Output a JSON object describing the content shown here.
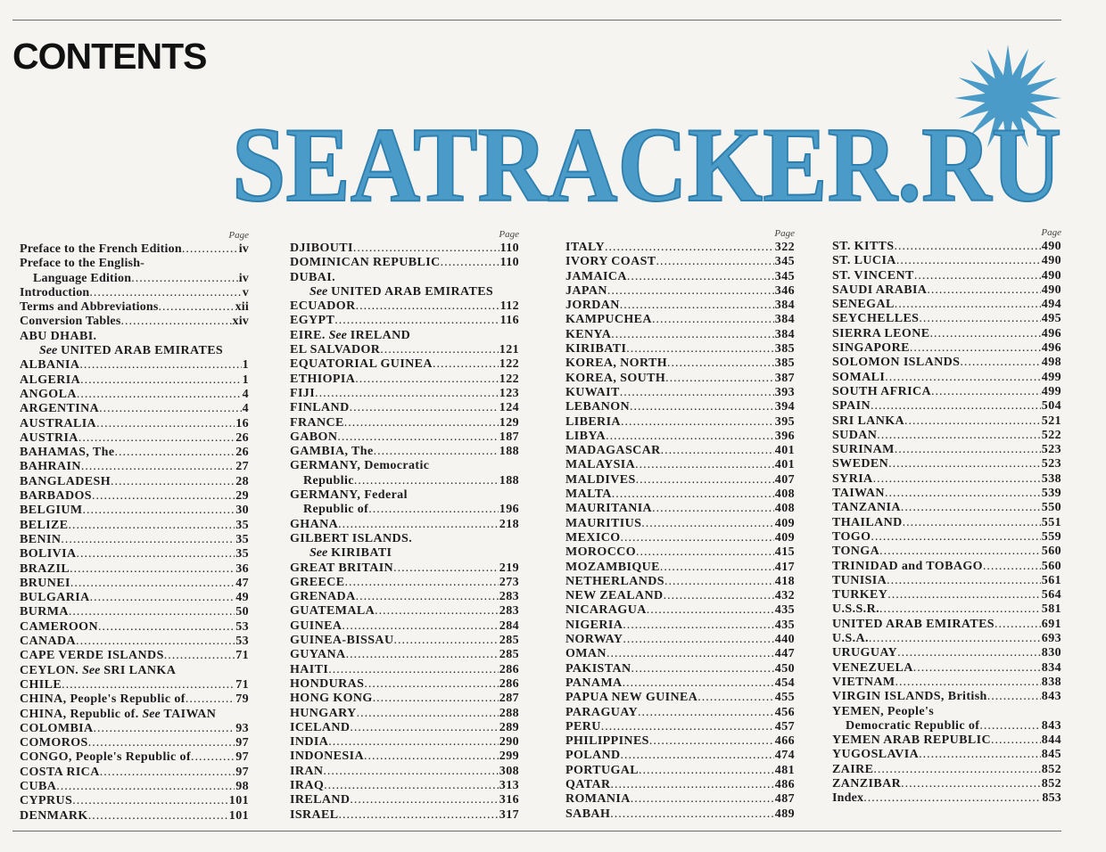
{
  "header": {
    "title": "CONTENTS"
  },
  "page_label": "Page",
  "columns": [
    [
      {
        "a": "Preface to the French Edition",
        "p": "iv",
        "mixed": true
      },
      {
        "a": "Preface to the English-",
        "mixed": true
      },
      {
        "a": "Language Edition",
        "p": "iv",
        "i": 1,
        "mixed": true
      },
      {
        "a": "Introduction",
        "p": "v",
        "mixed": true
      },
      {
        "a": "Terms and Abbreviations",
        "p": "xii",
        "mixed": true
      },
      {
        "a": "Conversion Tables",
        "p": "xiv",
        "mixed": true
      },
      {
        "a": "ABU DHABI."
      },
      {
        "s": "See",
        "b": " UNITED ARAB EMIRATES",
        "i": 1
      },
      {
        "a": "ALBANIA",
        "p": "1"
      },
      {
        "a": "ALGERIA",
        "p": "1"
      },
      {
        "a": "ANGOLA",
        "p": "4"
      },
      {
        "a": "ARGENTINA",
        "p": "4"
      },
      {
        "a": "AUSTRALIA",
        "p": "16"
      },
      {
        "a": "AUSTRIA",
        "p": "26"
      },
      {
        "a": "BAHAMAS, The",
        "p": "26"
      },
      {
        "a": "BAHRAIN",
        "p": "27"
      },
      {
        "a": "BANGLADESH",
        "p": "28"
      },
      {
        "a": "BARBADOS",
        "p": "29"
      },
      {
        "a": "BELGIUM",
        "p": "30"
      },
      {
        "a": "BELIZE",
        "p": "35"
      },
      {
        "a": "BENIN",
        "p": "35"
      },
      {
        "a": "BOLIVIA",
        "p": "35"
      },
      {
        "a": "BRAZIL",
        "p": "36"
      },
      {
        "a": "BRUNEI",
        "p": "47"
      },
      {
        "a": "BULGARIA",
        "p": "49"
      },
      {
        "a": "BURMA",
        "p": "50"
      },
      {
        "a": "CAMEROON",
        "p": "53"
      },
      {
        "a": "CANADA",
        "p": "53"
      },
      {
        "a": "CAPE VERDE ISLANDS",
        "p": "71"
      },
      {
        "a": "CEYLON. ",
        "s": "See",
        "b": " SRI LANKA"
      },
      {
        "a": "CHILE",
        "p": "71"
      },
      {
        "a": "CHINA, People's Republic of",
        "p": "79"
      },
      {
        "a": "CHINA, Republic of. ",
        "s": "See",
        "b": " TAIWAN"
      },
      {
        "a": "COLOMBIA",
        "p": "93"
      },
      {
        "a": "COMOROS",
        "p": "97"
      },
      {
        "a": "CONGO, People's Republic of",
        "p": "97"
      },
      {
        "a": "COSTA RICA",
        "p": "97"
      },
      {
        "a": "CUBA",
        "p": "98"
      },
      {
        "a": "CYPRUS",
        "p": "101"
      },
      {
        "a": "DENMARK",
        "p": "101"
      }
    ],
    [
      {
        "a": "DJIBOUTI",
        "p": "110"
      },
      {
        "a": "DOMINICAN REPUBLIC",
        "p": "110"
      },
      {
        "a": "DUBAI."
      },
      {
        "s": "See",
        "b": " UNITED ARAB EMIRATES",
        "i": 1
      },
      {
        "a": "ECUADOR",
        "p": "112"
      },
      {
        "a": "EGYPT",
        "p": "116"
      },
      {
        "a": "EIRE. ",
        "s": "See",
        "b": " IRELAND"
      },
      {
        "a": "EL SALVADOR",
        "p": "121"
      },
      {
        "a": "EQUATORIAL GUINEA",
        "p": "122"
      },
      {
        "a": "ETHIOPIA",
        "p": "122"
      },
      {
        "a": "FIJI",
        "p": "123"
      },
      {
        "a": "FINLAND",
        "p": "124"
      },
      {
        "a": "FRANCE",
        "p": "129"
      },
      {
        "a": "GABON",
        "p": "187"
      },
      {
        "a": "GAMBIA, The",
        "p": "188"
      },
      {
        "a": "GERMANY, Democratic"
      },
      {
        "a": "Republic",
        "p": "188",
        "i": 1
      },
      {
        "a": "GERMANY, Federal"
      },
      {
        "a": "Republic of",
        "p": "196",
        "i": 1
      },
      {
        "a": "GHANA",
        "p": "218"
      },
      {
        "a": "GILBERT ISLANDS."
      },
      {
        "s": "See",
        "b": " KIRIBATI",
        "i": 1
      },
      {
        "a": "GREAT BRITAIN",
        "p": "219"
      },
      {
        "a": "GREECE",
        "p": "273"
      },
      {
        "a": "GRENADA",
        "p": "283"
      },
      {
        "a": "GUATEMALA",
        "p": "283"
      },
      {
        "a": "GUINEA",
        "p": "284"
      },
      {
        "a": "GUINEA-BISSAU",
        "p": "285"
      },
      {
        "a": "GUYANA",
        "p": "285"
      },
      {
        "a": "HAITI",
        "p": "286"
      },
      {
        "a": "HONDURAS",
        "p": "286"
      },
      {
        "a": "HONG KONG",
        "p": "287"
      },
      {
        "a": "HUNGARY",
        "p": "288"
      },
      {
        "a": "ICELAND",
        "p": "289"
      },
      {
        "a": "INDIA",
        "p": "290"
      },
      {
        "a": "INDONESIA",
        "p": "299"
      },
      {
        "a": "IRAN",
        "p": "308"
      },
      {
        "a": "IRAQ",
        "p": "313"
      },
      {
        "a": "IRELAND",
        "p": "316"
      },
      {
        "a": "ISRAEL",
        "p": "317"
      }
    ],
    [
      {
        "a": "ITALY",
        "p": "322"
      },
      {
        "a": "IVORY COAST",
        "p": "345"
      },
      {
        "a": "JAMAICA",
        "p": "345"
      },
      {
        "a": "JAPAN",
        "p": "346"
      },
      {
        "a": "JORDAN",
        "p": "384"
      },
      {
        "a": "KAMPUCHEA",
        "p": "384"
      },
      {
        "a": "KENYA",
        "p": "384"
      },
      {
        "a": "KIRIBATI",
        "p": "385"
      },
      {
        "a": "KOREA, NORTH",
        "p": "385"
      },
      {
        "a": "KOREA, SOUTH",
        "p": "387"
      },
      {
        "a": "KUWAIT",
        "p": "393"
      },
      {
        "a": "LEBANON",
        "p": "394"
      },
      {
        "a": "LIBERIA",
        "p": "395"
      },
      {
        "a": "LIBYA",
        "p": "396"
      },
      {
        "a": "MADAGASCAR",
        "p": "401"
      },
      {
        "a": "MALAYSIA",
        "p": "401"
      },
      {
        "a": "MALDIVES",
        "p": "407"
      },
      {
        "a": "MALTA",
        "p": "408"
      },
      {
        "a": "MAURITANIA",
        "p": "408"
      },
      {
        "a": "MAURITIUS",
        "p": "409"
      },
      {
        "a": "MEXICO",
        "p": "409"
      },
      {
        "a": "MOROCCO",
        "p": "415"
      },
      {
        "a": "MOZAMBIQUE",
        "p": "417"
      },
      {
        "a": "NETHERLANDS",
        "p": "418"
      },
      {
        "a": "NEW ZEALAND",
        "p": "432"
      },
      {
        "a": "NICARAGUA",
        "p": "435"
      },
      {
        "a": "NIGERIA",
        "p": "435"
      },
      {
        "a": "NORWAY",
        "p": "440"
      },
      {
        "a": "OMAN",
        "p": "447"
      },
      {
        "a": "PAKISTAN",
        "p": "450"
      },
      {
        "a": "PANAMA",
        "p": "454"
      },
      {
        "a": "PAPUA NEW GUINEA",
        "p": "455"
      },
      {
        "a": "PARAGUAY",
        "p": "456"
      },
      {
        "a": "PERU",
        "p": "457"
      },
      {
        "a": "PHILIPPINES",
        "p": "466"
      },
      {
        "a": "POLAND",
        "p": "474"
      },
      {
        "a": "PORTUGAL",
        "p": "481"
      },
      {
        "a": "QATAR",
        "p": "486"
      },
      {
        "a": "ROMANIA",
        "p": "487"
      },
      {
        "a": "SABAH",
        "p": "489"
      }
    ],
    [
      {
        "a": "ST. KITTS",
        "p": "490"
      },
      {
        "a": "ST. LUCIA",
        "p": "490"
      },
      {
        "a": "ST. VINCENT",
        "p": "490"
      },
      {
        "a": "SAUDI ARABIA",
        "p": "490"
      },
      {
        "a": "SENEGAL",
        "p": "494"
      },
      {
        "a": "SEYCHELLES",
        "p": "495"
      },
      {
        "a": "SIERRA LEONE",
        "p": "496"
      },
      {
        "a": "SINGAPORE",
        "p": "496"
      },
      {
        "a": "SOLOMON ISLANDS",
        "p": "498"
      },
      {
        "a": "SOMALI",
        "p": "499"
      },
      {
        "a": "SOUTH AFRICA",
        "p": "499"
      },
      {
        "a": "SPAIN",
        "p": "504"
      },
      {
        "a": "SRI LANKA",
        "p": "521"
      },
      {
        "a": "SUDAN",
        "p": "522"
      },
      {
        "a": "SURINAM",
        "p": "523"
      },
      {
        "a": "SWEDEN",
        "p": "523"
      },
      {
        "a": "SYRIA",
        "p": "538"
      },
      {
        "a": "TAIWAN",
        "p": "539"
      },
      {
        "a": "TANZANIA",
        "p": "550"
      },
      {
        "a": "THAILAND",
        "p": "551"
      },
      {
        "a": "TOGO",
        "p": "559"
      },
      {
        "a": "TONGA",
        "p": "560"
      },
      {
        "a": "TRINIDAD and TOBAGO",
        "p": "560"
      },
      {
        "a": "TUNISIA",
        "p": "561"
      },
      {
        "a": "TURKEY",
        "p": "564"
      },
      {
        "a": "U.S.S.R.",
        "p": "581"
      },
      {
        "a": "UNITED ARAB EMIRATES",
        "p": "691"
      },
      {
        "a": "U.S.A.",
        "p": "693"
      },
      {
        "a": "URUGUAY",
        "p": "830"
      },
      {
        "a": "VENEZUELA",
        "p": "834"
      },
      {
        "a": "VIETNAM",
        "p": "838"
      },
      {
        "a": "VIRGIN ISLANDS, British",
        "p": "843"
      },
      {
        "a": "YEMEN, People's"
      },
      {
        "a": "Democratic Republic of",
        "p": "843",
        "i": 1
      },
      {
        "a": "YEMEN ARAB REPUBLIC",
        "p": "844"
      },
      {
        "a": "YUGOSLAVIA",
        "p": "845"
      },
      {
        "a": "ZAIRE",
        "p": "852"
      },
      {
        "a": "ZANZIBAR",
        "p": "852"
      },
      {
        "a": "Index",
        "p": "853",
        "mixed": true
      }
    ]
  ],
  "watermark": {
    "text": "SEATRACKER.RU",
    "color": "#4a9bc8"
  }
}
